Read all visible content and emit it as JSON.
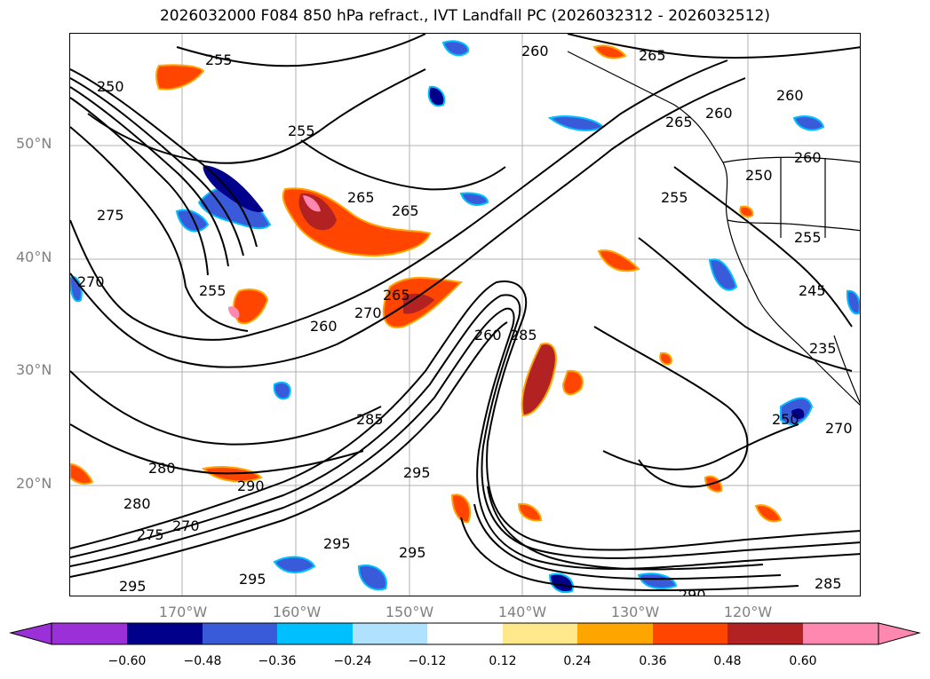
{
  "title": "2026032000 F084 850 hPa refract., IVT Landfall PC (2026032312 - 2026032512)",
  "lat_labels": [
    "50°N",
    "40°N",
    "30°N",
    "20°N"
  ],
  "lon_labels": [
    "170°W",
    "160°W",
    "150°W",
    "140°W",
    "130°W",
    "120°W"
  ],
  "colorbar": {
    "ticks": [
      "−0.60",
      "−0.48",
      "−0.36",
      "−0.24",
      "−0.12",
      "0.12",
      "0.24",
      "0.36",
      "0.48",
      "0.60"
    ],
    "colors": [
      "#9b30d8",
      "#00008b",
      "#3a5bd9",
      "#00bfff",
      "#b0e2ff",
      "#ffffff",
      "#ffe88c",
      "#ffa500",
      "#ff4500",
      "#b22222",
      "#ff88b0"
    ]
  },
  "contour_labels": [
    "255",
    "250",
    "255",
    "275",
    "270",
    "255",
    "260",
    "265",
    "265",
    "260",
    "260",
    "265",
    "265",
    "260",
    "255",
    "270",
    "265",
    "260",
    "285",
    "280",
    "280",
    "275",
    "270",
    "285",
    "290",
    "295",
    "295",
    "295",
    "295",
    "295",
    "290",
    "285",
    "235",
    "245",
    "250",
    "255",
    "270",
    "260",
    "250"
  ]
}
